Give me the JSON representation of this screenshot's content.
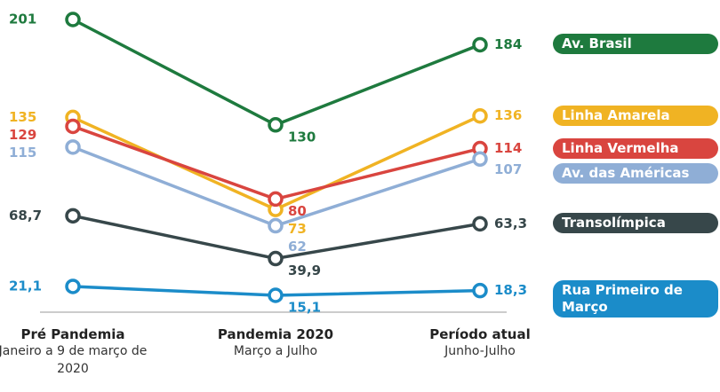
{
  "chart_data": {
    "type": "line",
    "categories": [
      "Pré Pandemia",
      "Pandemia 2020",
      "Período atual"
    ],
    "category_subtitles": [
      "Janeiro a 9 de março de 2020",
      "Março a Julho",
      "Junho-Julho"
    ],
    "series": [
      {
        "name": "Av. Brasil",
        "color": "#1e7a3e",
        "values": [
          201,
          130,
          184
        ]
      },
      {
        "name": "Linha Amarela",
        "color": "#f0b323",
        "values": [
          135,
          73,
          136
        ]
      },
      {
        "name": "Linha Vermelha",
        "color": "#d9453f",
        "values": [
          129,
          80,
          114
        ]
      },
      {
        "name": "Av. das Américas",
        "color": "#8faed6",
        "values": [
          115,
          62,
          107
        ]
      },
      {
        "name": "Transolímpica",
        "color": "#37474a",
        "values": [
          68.7,
          39.9,
          63.3
        ],
        "value_labels": [
          "68,7",
          "39,9",
          "63,3"
        ]
      },
      {
        "name": "Rua Primeiro de Março",
        "color": "#1b8cc9",
        "values": [
          21.1,
          15.1,
          18.3
        ],
        "value_labels": [
          "21,1",
          "15,1",
          "18,3"
        ]
      }
    ]
  }
}
